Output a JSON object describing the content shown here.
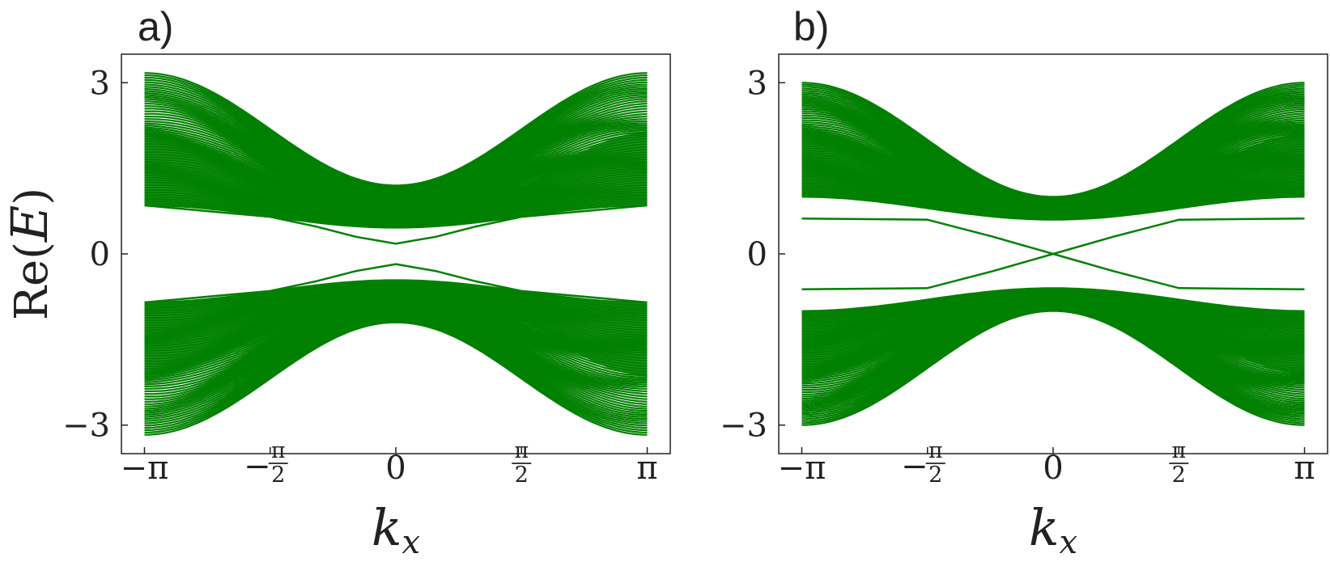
{
  "chart_data": [
    {
      "type": "line",
      "panel_label": "a)",
      "title": "",
      "xlabel": "k_x",
      "xlabel_main": "k",
      "xlabel_sub": "x",
      "ylabel": "Re(E)",
      "ylabel_text": "Re(",
      "ylabel_var": "E",
      "ylabel_close": ")",
      "xlim": [
        -3.1416,
        3.1416
      ],
      "ylim": [
        -3.5,
        3.5
      ],
      "xticks": [
        -3.1416,
        -1.5708,
        0,
        1.5708,
        3.1416
      ],
      "xtick_labels": [
        "−π",
        "−π/2",
        "0",
        "π/2",
        "π"
      ],
      "yticks": [
        3,
        0,
        -3
      ],
      "ytick_labels": [
        "3",
        "0",
        "−3"
      ],
      "line_color": "#008000",
      "grid": false,
      "legend": "none",
      "gap": true,
      "bands": {
        "count": 60,
        "inner_edge_at_0": 0.46,
        "inner_edge_at_pi": 0.85,
        "outer_edge_at_0": 1.2,
        "outer_edge_at_pi": 3.17
      },
      "series": [
        {
          "x": [
            -3.1416,
            -2.3562,
            -1.5708,
            -1.0,
            -0.5,
            0,
            0.5,
            1.0,
            1.5708,
            2.3562,
            3.1416
          ],
          "y": [
            0.85,
            0.75,
            0.65,
            0.48,
            0.3,
            0.18,
            0.3,
            0.48,
            0.65,
            0.75,
            0.85
          ]
        },
        {
          "x": [
            -3.1416,
            -2.3562,
            -1.5708,
            -1.0,
            -0.5,
            0,
            0.5,
            1.0,
            1.5708,
            2.3562,
            3.1416
          ],
          "y": [
            -0.85,
            -0.75,
            -0.65,
            -0.48,
            -0.3,
            -0.18,
            -0.3,
            -0.48,
            -0.65,
            -0.75,
            -0.85
          ]
        }
      ]
    },
    {
      "type": "line",
      "panel_label": "b)",
      "title": "",
      "xlabel": "k_x",
      "xlabel_main": "k",
      "xlabel_sub": "x",
      "ylabel": "",
      "xlim": [
        -3.1416,
        3.1416
      ],
      "ylim": [
        -3.5,
        3.5
      ],
      "xticks": [
        -3.1416,
        -1.5708,
        0,
        1.5708,
        3.1416
      ],
      "xtick_labels": [
        "−π",
        "−π/2",
        "0",
        "π/2",
        "π"
      ],
      "yticks": [
        3,
        0,
        -3
      ],
      "ytick_labels": [
        "3",
        "0",
        "−3"
      ],
      "line_color": "#008000",
      "grid": false,
      "legend": "none",
      "gap": false,
      "bands": {
        "count": 60,
        "inner_edge_at_0": 0.6,
        "inner_edge_at_pi": 1.0,
        "outer_edge_at_0": 1.0,
        "outer_edge_at_pi": 3.0
      },
      "series": [
        {
          "x": [
            -3.1416,
            -1.5708,
            -0.75,
            0,
            0.75,
            1.5708,
            3.1416
          ],
          "y": [
            0.62,
            0.6,
            0.3,
            0.0,
            -0.3,
            -0.6,
            -0.62
          ]
        },
        {
          "x": [
            -3.1416,
            -1.5708,
            -0.75,
            0,
            0.75,
            1.5708,
            3.1416
          ],
          "y": [
            -0.62,
            -0.6,
            -0.3,
            0.0,
            0.3,
            0.6,
            0.62
          ]
        }
      ]
    }
  ]
}
